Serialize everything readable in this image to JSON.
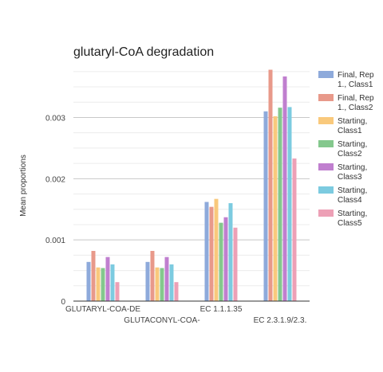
{
  "chart_data": {
    "type": "bar",
    "title": "glutaryl-CoA degradation",
    "xlabel": "",
    "ylabel": "Mean proportions",
    "ylim": [
      0,
      0.0038
    ],
    "yticks": [
      {
        "value": 0,
        "label": "0"
      },
      {
        "value": 0.001,
        "label": "0.001"
      },
      {
        "value": 0.002,
        "label": "0.002"
      },
      {
        "value": 0.003,
        "label": "0.003"
      }
    ],
    "grid": true,
    "legend_position": "right",
    "categories": [
      "GLUTARYL-COA-DE",
      "GLUTACONYL-COA-",
      "EC 1.1.1.35",
      "EC 2.3.1.9/2.3."
    ],
    "series": [
      {
        "name": "Final, Rep 1., Class1",
        "name_lines": [
          "Final, Rep",
          "1., Class1"
        ],
        "color": "#8eaadb",
        "values": [
          0.00064,
          0.00064,
          0.00162,
          0.0031
        ]
      },
      {
        "name": "Final, Rep 1., Class2",
        "name_lines": [
          "Final, Rep",
          "1., Class2"
        ],
        "color": "#e8998a",
        "values": [
          0.00082,
          0.00082,
          0.00154,
          0.00378
        ]
      },
      {
        "name": "Starting, Class1",
        "name_lines": [
          "Starting,",
          "Class1"
        ],
        "color": "#f9c97c",
        "values": [
          0.00055,
          0.00055,
          0.00167,
          0.00302
        ]
      },
      {
        "name": "Starting, Class2",
        "name_lines": [
          "Starting,",
          "Class2"
        ],
        "color": "#84c88d",
        "values": [
          0.00054,
          0.00054,
          0.00128,
          0.00316
        ]
      },
      {
        "name": "Starting, Class3",
        "name_lines": [
          "Starting,",
          "Class3"
        ],
        "color": "#c07fcf",
        "values": [
          0.00072,
          0.00072,
          0.00137,
          0.00367
        ]
      },
      {
        "name": "Starting, Class4",
        "name_lines": [
          "Starting,",
          "Class4"
        ],
        "color": "#7ccbe0",
        "values": [
          0.0006,
          0.0006,
          0.0016,
          0.00317
        ]
      },
      {
        "name": "Starting, Class5",
        "name_lines": [
          "Starting,",
          "Class5"
        ],
        "color": "#eda0b6",
        "values": [
          0.00031,
          0.00031,
          0.0012,
          0.00233
        ]
      }
    ]
  }
}
